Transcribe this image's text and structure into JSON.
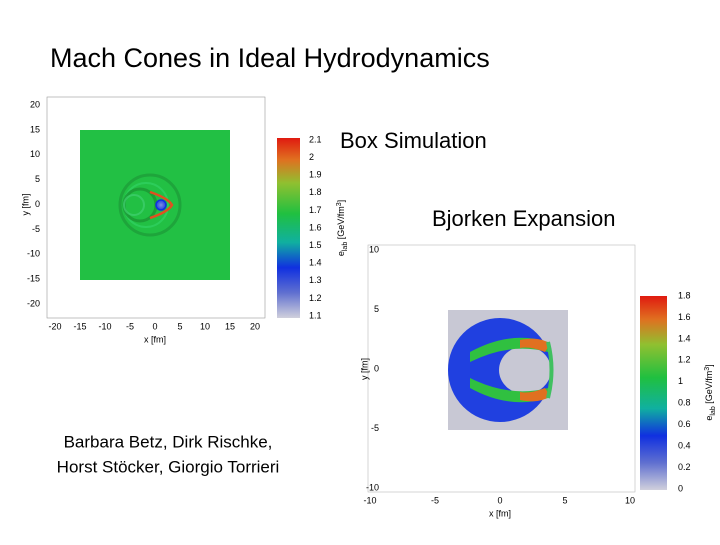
{
  "title": "Mach Cones in Ideal Hydrodynamics",
  "labels": {
    "box": "Box Simulation",
    "bjorken": "Bjorken Expansion"
  },
  "authors": [
    "Barbara Betz, Dirk Rischke,",
    "Horst Stöcker, Giorgio Torrieri"
  ],
  "box_plot": {
    "xticks": [
      "-20",
      "-15",
      "-10",
      "-5",
      "0",
      "5",
      "10",
      "15",
      "20"
    ],
    "yticks": [
      "20",
      "15",
      "10",
      "5",
      "0",
      "-5",
      "-10",
      "-15",
      "-20"
    ],
    "xlabel": "x [fm]",
    "ylabel": "y [fm]",
    "cticks": [
      "2.1",
      "2",
      "1.9",
      "1.8",
      "1.7",
      "1.6",
      "1.5",
      "1.4",
      "1.3",
      "1.2",
      "1.1"
    ],
    "clabel": {
      "symbol": "e",
      "sub": "lab",
      "unit": " [GeV/fm",
      "sup": "3",
      "close": "]"
    }
  },
  "bjorken_plot": {
    "xticks": [
      "-10",
      "-5",
      "0",
      "5",
      "10"
    ],
    "yticks": [
      "10",
      "5",
      "0",
      "-5",
      "-10"
    ],
    "xlabel": "x [fm]",
    "ylabel": "y [fm]",
    "cticks": [
      "1.8",
      "1.6",
      "1.4",
      "1.2",
      "1",
      "0.8",
      "0.6",
      "0.4",
      "0.2",
      "0"
    ],
    "clabel": {
      "symbol": "e",
      "sub": "lab",
      "unit": " [GeV/fm",
      "sup": "3",
      "close": "]"
    }
  }
}
